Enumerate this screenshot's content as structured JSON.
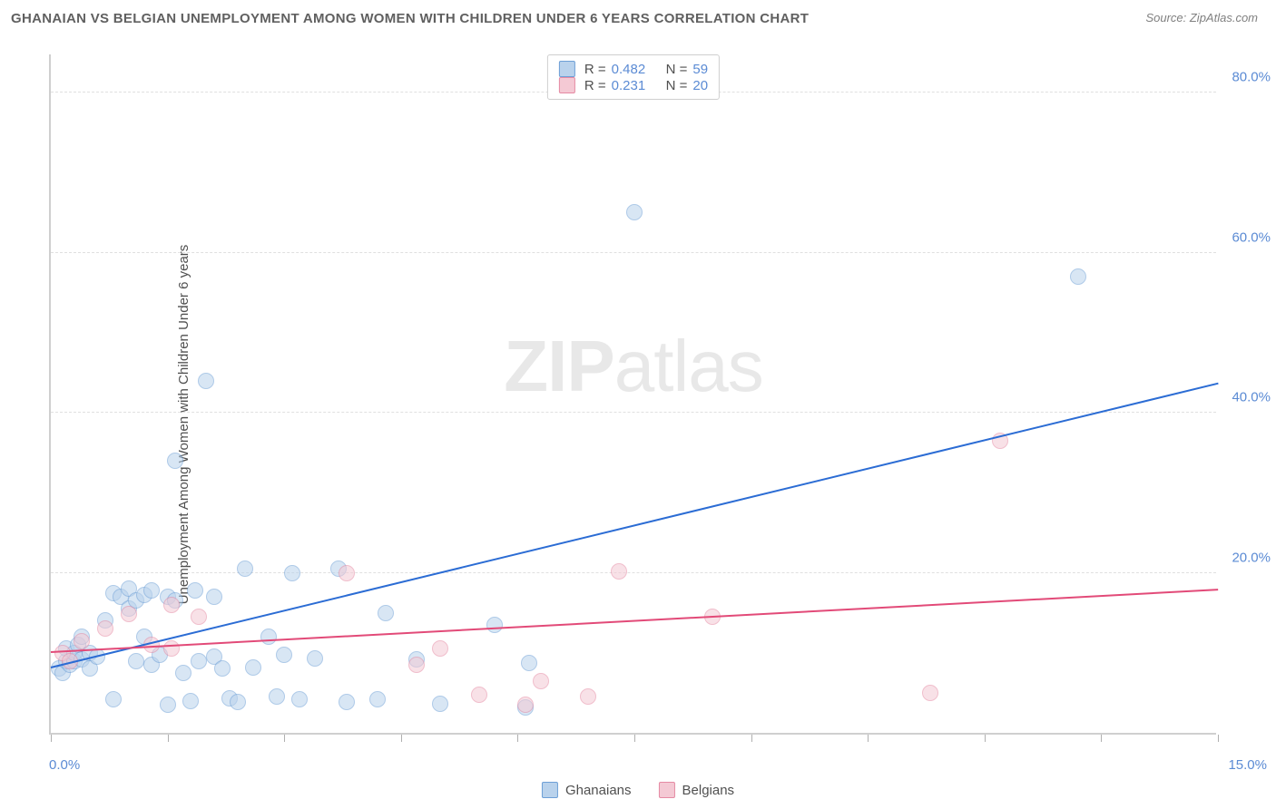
{
  "title": "GHANAIAN VS BELGIAN UNEMPLOYMENT AMONG WOMEN WITH CHILDREN UNDER 6 YEARS CORRELATION CHART",
  "source": "Source: ZipAtlas.com",
  "ylabel": "Unemployment Among Women with Children Under 6 years",
  "watermark": {
    "part1": "ZIP",
    "part2": "atlas"
  },
  "chart": {
    "type": "scatter",
    "background_color": "#ffffff",
    "grid_color": "#e0e0e0",
    "axis_color": "#cfcfcf",
    "tick_color": "#b0b0b0",
    "label_color": "#5b8bd4",
    "point_radius": 9,
    "point_opacity": 0.55,
    "xlim": [
      0,
      15
    ],
    "ylim": [
      0,
      85
    ],
    "x_axis_min_label": "0.0%",
    "x_axis_max_label": "15.0%",
    "y_ticks": [
      {
        "value": 20,
        "label": "20.0%"
      },
      {
        "value": 40,
        "label": "40.0%"
      },
      {
        "value": 60,
        "label": "60.0%"
      },
      {
        "value": 80,
        "label": "80.0%"
      }
    ],
    "x_tick_positions": [
      0,
      1.5,
      3,
      4.5,
      6,
      7.5,
      9,
      10.5,
      12,
      13.5,
      15
    ],
    "series": [
      {
        "id": "ghanaians",
        "label": "Ghanaians",
        "fill": "#b9d2ec",
        "stroke": "#6d9fd6",
        "trend_color": "#2b6cd4",
        "r": 0.482,
        "n": 59,
        "trend": {
          "x1": 0,
          "y1": 8,
          "x2": 15,
          "y2": 43.5
        },
        "points": [
          [
            0.1,
            8
          ],
          [
            0.15,
            7.5
          ],
          [
            0.2,
            9
          ],
          [
            0.2,
            10.5
          ],
          [
            0.25,
            8.5
          ],
          [
            0.3,
            9
          ],
          [
            0.3,
            10
          ],
          [
            0.35,
            11
          ],
          [
            0.4,
            9.2
          ],
          [
            0.4,
            12
          ],
          [
            0.5,
            10
          ],
          [
            0.5,
            8
          ],
          [
            0.6,
            9.5
          ],
          [
            0.7,
            14
          ],
          [
            0.8,
            17.5
          ],
          [
            0.8,
            4.2
          ],
          [
            0.9,
            17
          ],
          [
            1.0,
            18
          ],
          [
            1.0,
            15.5
          ],
          [
            1.1,
            16.5
          ],
          [
            1.1,
            9
          ],
          [
            1.2,
            17.2
          ],
          [
            1.2,
            12
          ],
          [
            1.3,
            17.8
          ],
          [
            1.3,
            8.5
          ],
          [
            1.4,
            9.8
          ],
          [
            1.5,
            17
          ],
          [
            1.5,
            3.5
          ],
          [
            1.6,
            16.5
          ],
          [
            1.6,
            34
          ],
          [
            1.7,
            7.5
          ],
          [
            1.8,
            4
          ],
          [
            1.85,
            17.8
          ],
          [
            1.9,
            9
          ],
          [
            2.0,
            44
          ],
          [
            2.1,
            9.5
          ],
          [
            2.1,
            17
          ],
          [
            2.2,
            8
          ],
          [
            2.3,
            4.3
          ],
          [
            2.4,
            3.9
          ],
          [
            2.5,
            20.5
          ],
          [
            2.6,
            8.2
          ],
          [
            2.8,
            12
          ],
          [
            2.9,
            4.5
          ],
          [
            3.0,
            9.7
          ],
          [
            3.1,
            20
          ],
          [
            3.2,
            4.2
          ],
          [
            3.4,
            9.3
          ],
          [
            3.7,
            20.5
          ],
          [
            3.8,
            3.8
          ],
          [
            4.2,
            4.2
          ],
          [
            4.3,
            15
          ],
          [
            4.7,
            9.2
          ],
          [
            5.0,
            3.6
          ],
          [
            5.7,
            13.5
          ],
          [
            6.1,
            3.2
          ],
          [
            6.15,
            8.7
          ],
          [
            7.5,
            65
          ],
          [
            13.2,
            57
          ]
        ]
      },
      {
        "id": "belgians",
        "label": "Belgians",
        "fill": "#f4c9d4",
        "stroke": "#e58aa3",
        "trend_color": "#e24a78",
        "r": 0.231,
        "n": 20,
        "trend": {
          "x1": 0,
          "y1": 10,
          "x2": 15,
          "y2": 17.8
        },
        "points": [
          [
            0.15,
            10
          ],
          [
            0.25,
            9
          ],
          [
            0.4,
            11.5
          ],
          [
            0.7,
            13
          ],
          [
            1.0,
            14.8
          ],
          [
            1.3,
            11
          ],
          [
            1.55,
            16
          ],
          [
            1.55,
            10.5
          ],
          [
            1.9,
            14.5
          ],
          [
            3.8,
            20
          ],
          [
            4.7,
            8.5
          ],
          [
            5.0,
            10.5
          ],
          [
            5.5,
            4.8
          ],
          [
            6.1,
            3.5
          ],
          [
            6.3,
            6.5
          ],
          [
            6.9,
            4.5
          ],
          [
            7.3,
            20.2
          ],
          [
            8.5,
            14.5
          ],
          [
            11.3,
            5.0
          ],
          [
            12.2,
            36.5
          ]
        ]
      }
    ]
  },
  "legend_top": {
    "r_label": "R =",
    "n_label": "N ="
  }
}
